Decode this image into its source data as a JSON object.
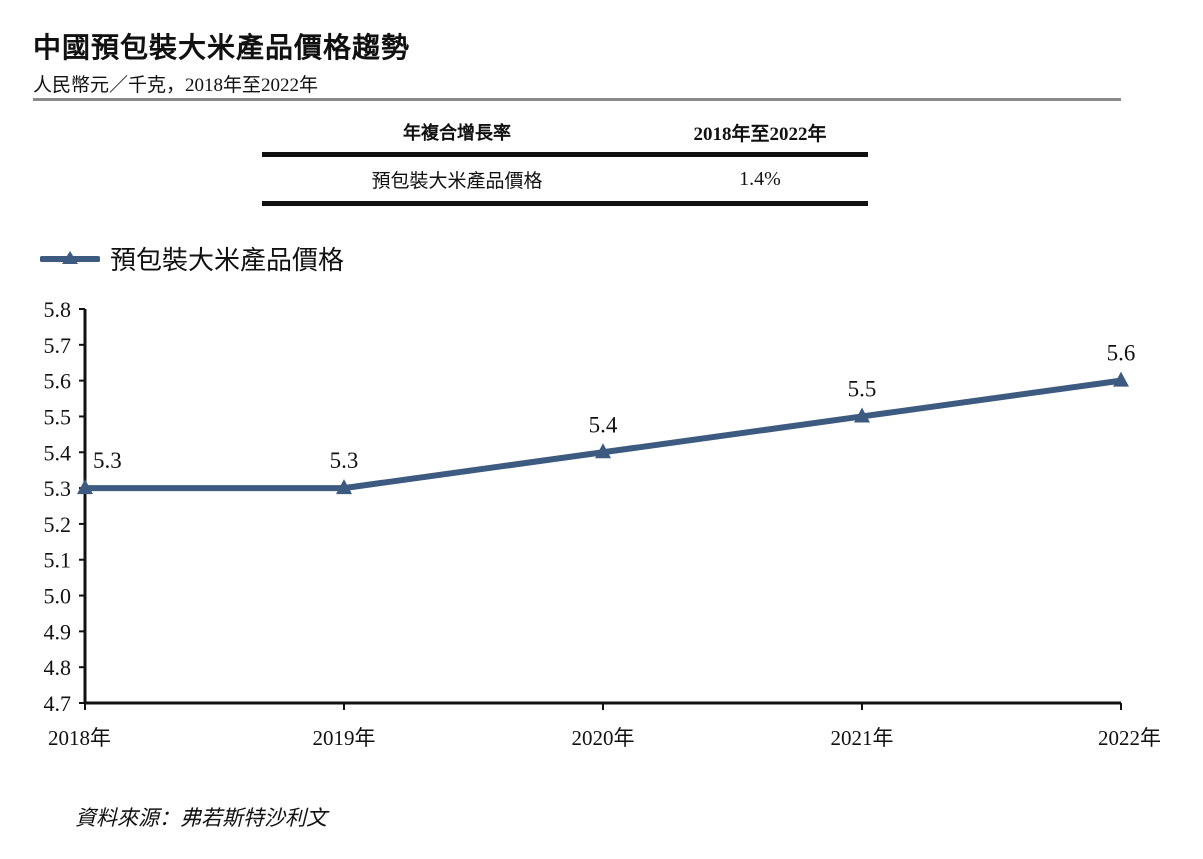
{
  "header": {
    "title": "中國預包裝大米產品價格趨勢",
    "subtitle": "人民幣元／千克，2018年至2022年"
  },
  "cagr_table": {
    "col1_header": "年複合增長率",
    "col2_header": "2018年至2022年",
    "row_label": "預包裝大米產品價格",
    "row_value": "1.4%"
  },
  "footer": {
    "source": "資料來源：弗若斯特沙利文"
  },
  "colors": {
    "series": "#3d5a80",
    "axis": "#111111",
    "rule": "#8a8a8a"
  },
  "chart_data": {
    "type": "line",
    "categories": [
      "2018年",
      "2019年",
      "2020年",
      "2021年",
      "2022年"
    ],
    "series": [
      {
        "name": "預包裝大米產品價格",
        "values": [
          5.3,
          5.3,
          5.4,
          5.5,
          5.6
        ],
        "marker": "triangle"
      }
    ],
    "ylim": [
      4.7,
      5.8
    ],
    "yticks": [
      "4.7",
      "4.8",
      "4.9",
      "5.0",
      "5.1",
      "5.2",
      "5.3",
      "5.4",
      "5.5",
      "5.6",
      "5.7",
      "5.8"
    ],
    "data_labels": [
      "5.3",
      "5.3",
      "5.4",
      "5.5",
      "5.6"
    ],
    "grid": false,
    "legend_position": "top-left"
  }
}
